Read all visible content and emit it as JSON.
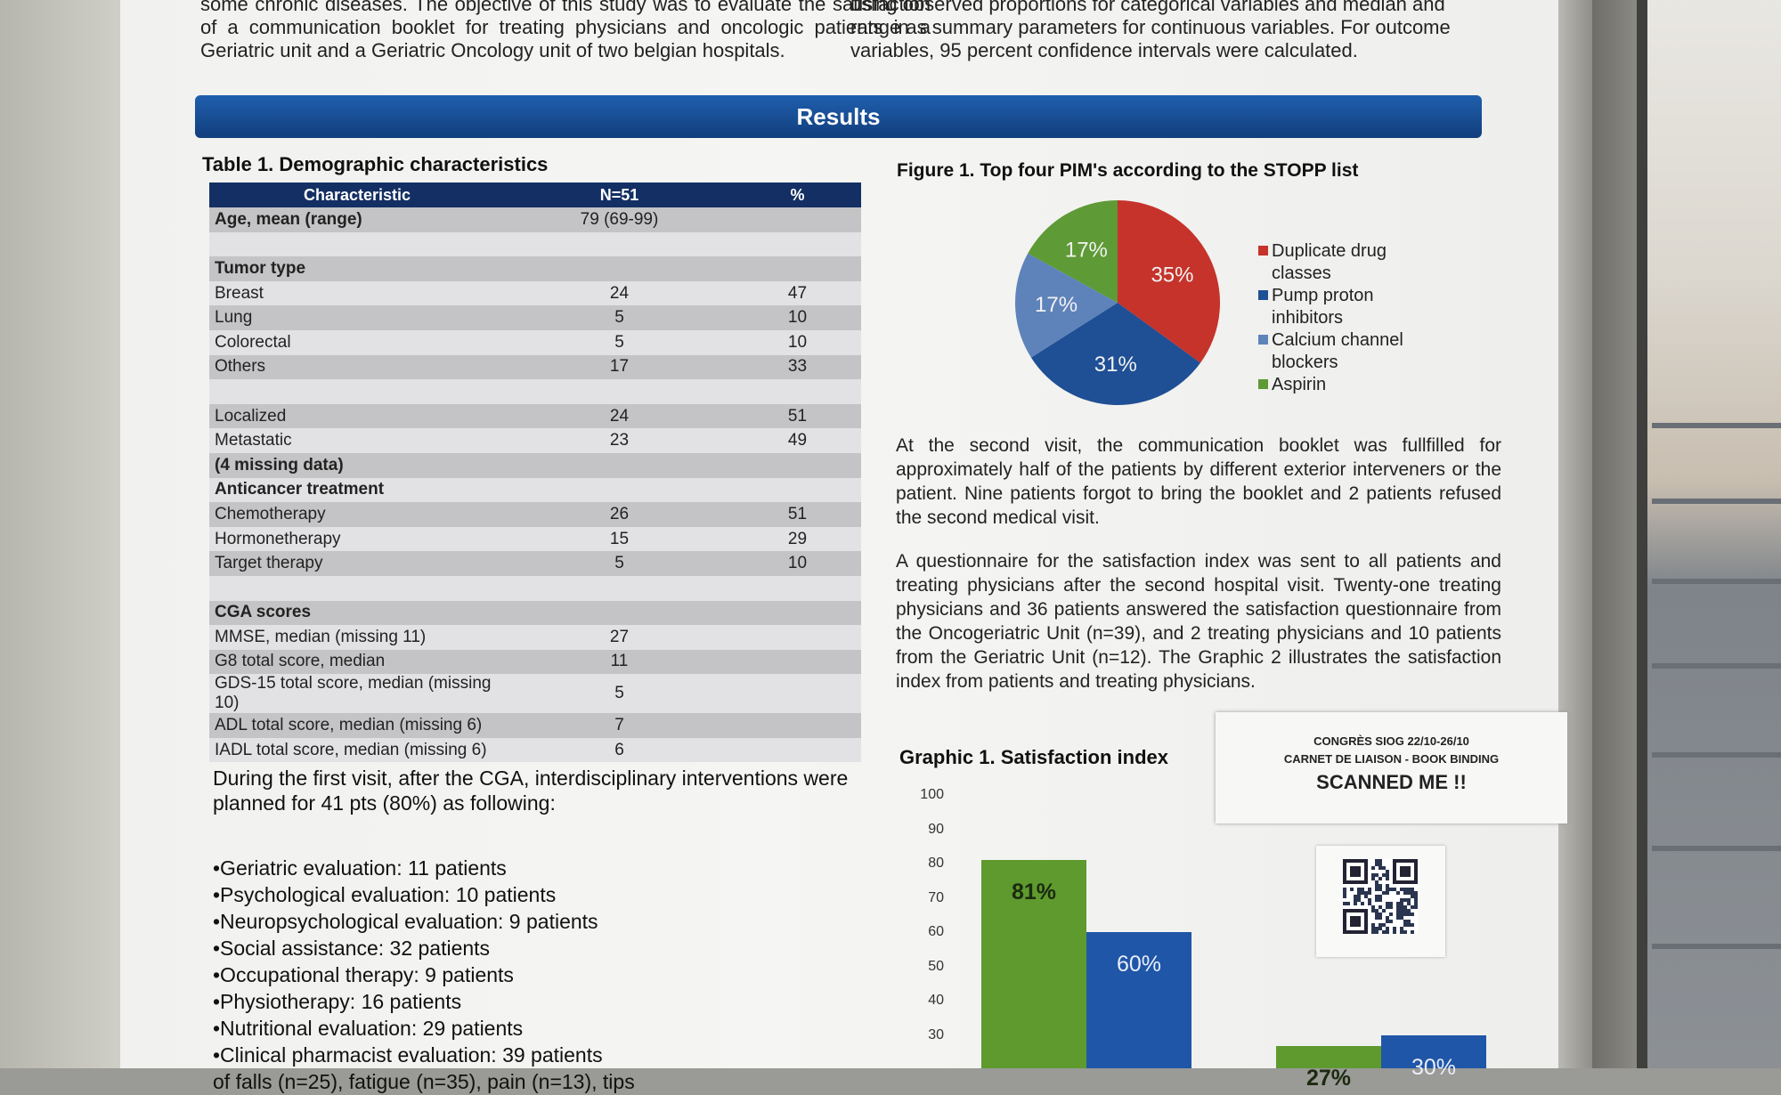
{
  "intro": {
    "left_text": "some chronic diseases. The objective of this study was to evaluate the satisfaction of a communication booklet for treating physicians and oncologic patients in a Geriatric unit and a Geriatric Oncology unit of two belgian hospitals.",
    "right_text": "using observed proportions for categorical variables and median and range as summary parameters for continuous variables. For outcome variables, 95 percent confidence intervals were calculated."
  },
  "banner": {
    "title": "Results"
  },
  "table1": {
    "title": "Table 1. Demographic characteristics",
    "headers": [
      "Characteristic",
      "N=51",
      "%"
    ],
    "rows": [
      {
        "label": "Age, mean (range)",
        "n": "79 (69-99)",
        "p": "",
        "bold": true,
        "shade": "sh"
      },
      {
        "label": "",
        "n": "",
        "p": "",
        "bold": false,
        "shade": "lt"
      },
      {
        "label": "Tumor type",
        "n": "",
        "p": "",
        "bold": true,
        "shade": "sh"
      },
      {
        "label": "Breast",
        "n": "24",
        "p": "47",
        "bold": false,
        "shade": "lt"
      },
      {
        "label": "Lung",
        "n": "5",
        "p": "10",
        "bold": false,
        "shade": "sh"
      },
      {
        "label": "Colorectal",
        "n": "5",
        "p": "10",
        "bold": false,
        "shade": "lt"
      },
      {
        "label": "Others",
        "n": "17",
        "p": "33",
        "bold": false,
        "shade": "sh"
      },
      {
        "label": "",
        "n": "",
        "p": "",
        "bold": false,
        "shade": "lt"
      },
      {
        "label": "Localized",
        "n": "24",
        "p": "51",
        "bold": false,
        "shade": "sh"
      },
      {
        "label": "Metastatic",
        "n": "23",
        "p": "49",
        "bold": false,
        "shade": "lt"
      },
      {
        "label": "(4 missing data)",
        "n": "",
        "p": "",
        "bold": true,
        "shade": "sh"
      },
      {
        "label": "Anticancer treatment",
        "n": "",
        "p": "",
        "bold": true,
        "shade": "lt"
      },
      {
        "label": "Chemotherapy",
        "n": "26",
        "p": "51",
        "bold": false,
        "shade": "sh"
      },
      {
        "label": "Hormonetherapy",
        "n": "15",
        "p": "29",
        "bold": false,
        "shade": "lt"
      },
      {
        "label": "Target therapy",
        "n": "5",
        "p": "10",
        "bold": false,
        "shade": "sh"
      },
      {
        "label": "",
        "n": "",
        "p": "",
        "bold": false,
        "shade": "lt"
      },
      {
        "label": "CGA scores",
        "n": "",
        "p": "",
        "bold": true,
        "shade": "sh"
      },
      {
        "label": "MMSE, median (missing 11)",
        "n": "27",
        "p": "",
        "bold": false,
        "shade": "lt"
      },
      {
        "label": "G8 total score, median",
        "n": "11",
        "p": "",
        "bold": false,
        "shade": "sh"
      },
      {
        "label": "GDS-15 total score, median (missing 10)",
        "n": "5",
        "p": "",
        "bold": false,
        "shade": "lt"
      },
      {
        "label": "ADL total score, median (missing 6)",
        "n": "7",
        "p": "",
        "bold": false,
        "shade": "sh"
      },
      {
        "label": "IADL total score, median (missing 6)",
        "n": "6",
        "p": "",
        "bold": false,
        "shade": "lt"
      }
    ]
  },
  "first_visit": {
    "paragraph": "During the first visit, after the CGA, interdisciplinary interventions were planned for 41 pts (80%) as following:",
    "items": [
      "•Geriatric evaluation: 11 patients",
      "•Psychological evaluation: 10 patients",
      "•Neuropsychological evaluation: 9 patients",
      "•Social assistance: 32 patients",
      "•Occupational therapy: 9 patients",
      "•Physiotherapy: 16 patients",
      "•Nutritional evaluation: 29 patients",
      "•Clinical pharmacist evaluation: 39 patients",
      "of falls (n=25), fatigue (n=35), pain (n=13), tips"
    ]
  },
  "figure1": {
    "title": "Figure 1. Top four PIM's according to the STOPP list",
    "legend": [
      {
        "line1": "Duplicate drug",
        "line2": "classes",
        "color": "#c5332b"
      },
      {
        "line1": "Pump proton",
        "line2": "inhibitors",
        "color": "#1f4f94"
      },
      {
        "line1": "Calcium channel",
        "line2": "blockers",
        "color": "#5e83bb"
      },
      {
        "line1": "Aspirin",
        "line2": "",
        "color": "#5e9a36"
      }
    ]
  },
  "body_text": {
    "para_second_visit": "At the second visit, the communication booklet was fullfilled for approximately half of the patients by different exterior interveners or the patient. Nine patients forgot to bring the booklet and 2 patients refused the second medical visit.",
    "para_questionnaire": "A questionnaire for the satisfaction index was sent to all patients and treating physicians after the second hospital visit. Twenty-one treating physicians and 36 patients answered the satisfaction questionnaire from the Oncogeriatric Unit (n=39), and 2 treating physicians and 10 patients from the Geriatric Unit (n=12). The Graphic 2 illustrates the satisfaction index from patients and treating physicians."
  },
  "graphic1": {
    "title": "Graphic 1. Satisfaction index"
  },
  "card": {
    "line1": "CONGRÈS SIOG 22/10-26/10",
    "line2": "CARNET DE LIAISON - BOOK BINDING",
    "line3": "SCANNED ME !!"
  },
  "chart_data": [
    {
      "type": "pie",
      "title": "Figure 1. Top four PIM's according to the STOPP list",
      "labels": [
        "Duplicate drug classes",
        "Pump proton inhibitors",
        "Calcium channel blockers",
        "Aspirin"
      ],
      "values": [
        35,
        31,
        17,
        17
      ],
      "value_labels": [
        "35%",
        "31%",
        "17%",
        "17%"
      ],
      "colors": [
        "#c5332b",
        "#1f4f94",
        "#5e83bb",
        "#5e9a36"
      ],
      "legend": "right"
    },
    {
      "type": "bar",
      "title": "Graphic 1. Satisfaction index",
      "ylim": [
        30,
        100
      ],
      "yticks": [
        30,
        40,
        50,
        60,
        70,
        80,
        90,
        100
      ],
      "groups": [
        {
          "values": [
            81,
            60
          ],
          "value_labels": [
            "81%",
            "60%"
          ]
        },
        {
          "values": [
            27,
            30
          ],
          "value_labels": [
            "27%",
            "30%"
          ]
        }
      ],
      "colors": [
        "#5e9a2e",
        "#1f56a8"
      ]
    }
  ]
}
